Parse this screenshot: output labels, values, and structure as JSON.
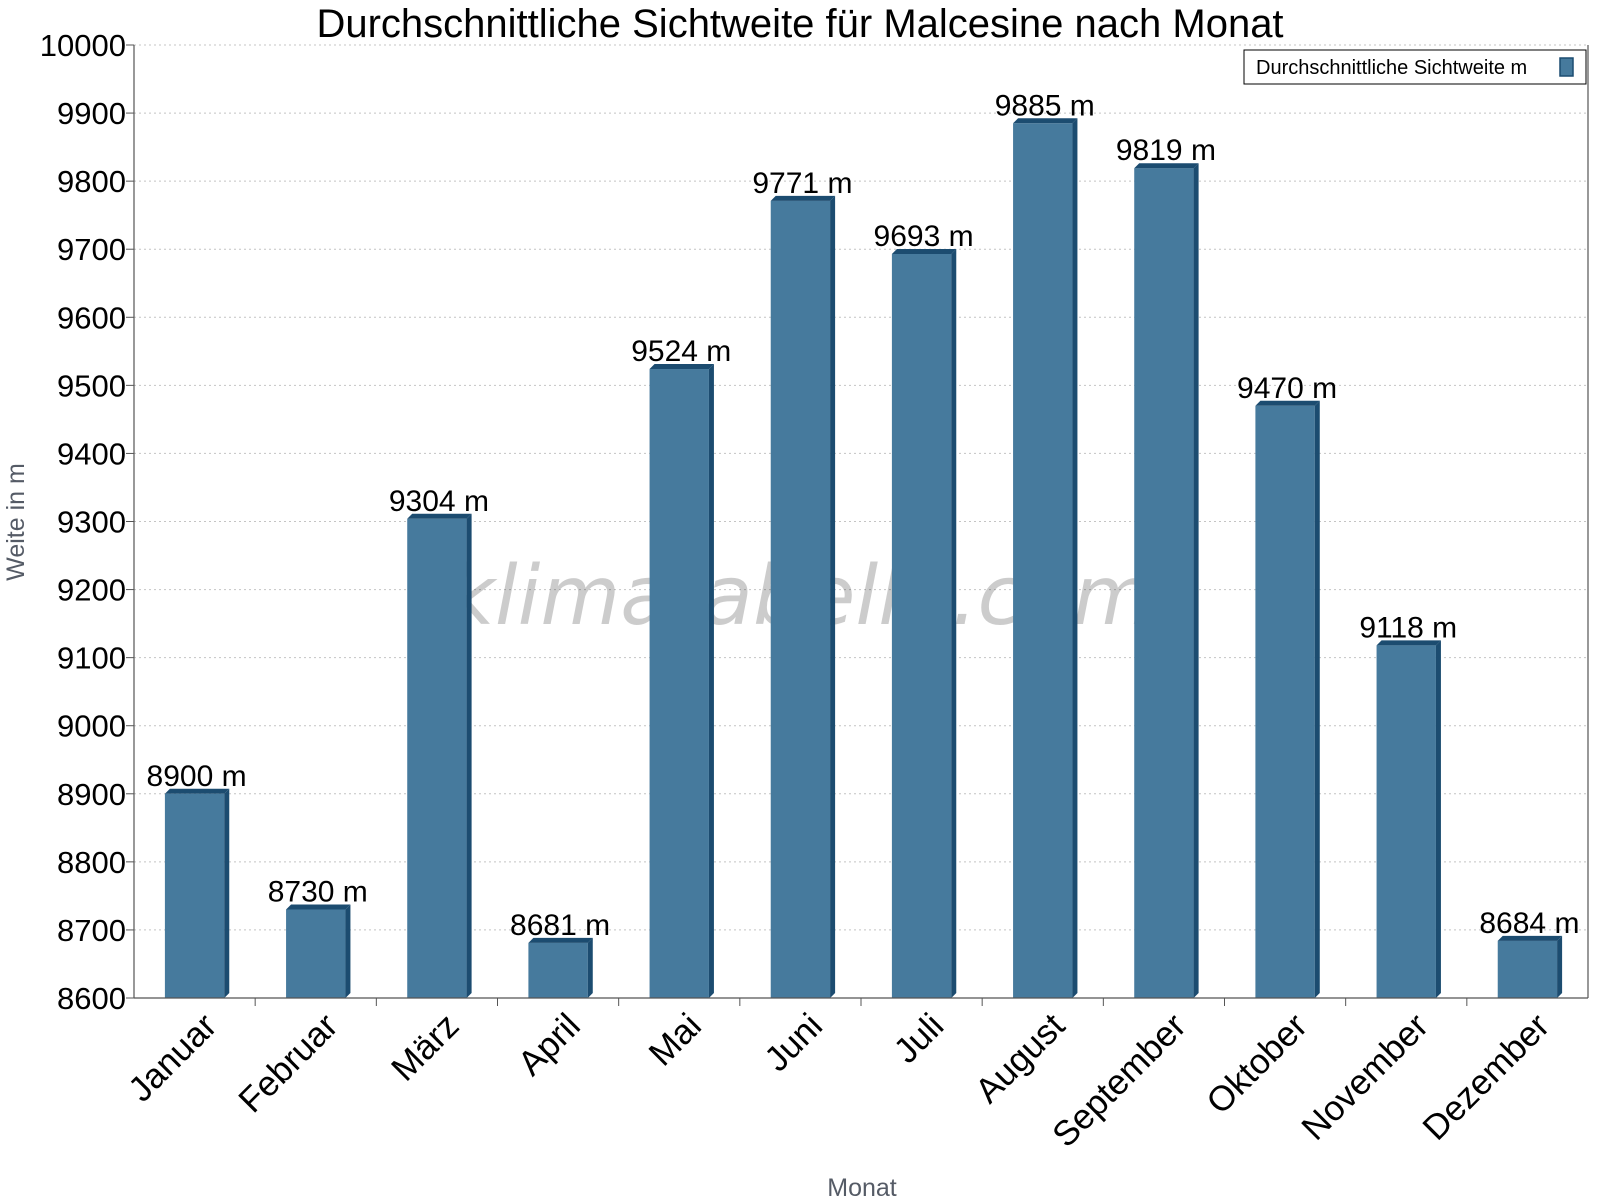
{
  "chart_data": {
    "type": "bar",
    "title": "Durchschnittliche Sichtweite für Malcesine nach Monat",
    "xlabel": "Monat",
    "ylabel": "Weite in m",
    "categories": [
      "Januar",
      "Februar",
      "März",
      "April",
      "Mai",
      "Juni",
      "Juli",
      "August",
      "September",
      "Oktober",
      "November",
      "Dezember"
    ],
    "series": [
      {
        "name": "Durchschnittliche Sichtweite m",
        "values": [
          8900,
          8730,
          9304,
          8681,
          9524,
          9771,
          9693,
          9885,
          9819,
          9470,
          9118,
          8684
        ],
        "color": "#467a9d",
        "side_color": "#1c4c70",
        "top_color": "#1c4c70"
      }
    ],
    "value_suffix": " m",
    "ylim": [
      8600,
      10000
    ],
    "ytick_step": 100,
    "grid": true,
    "legend_position": "top-right",
    "watermark": "klimatabelle.com"
  }
}
